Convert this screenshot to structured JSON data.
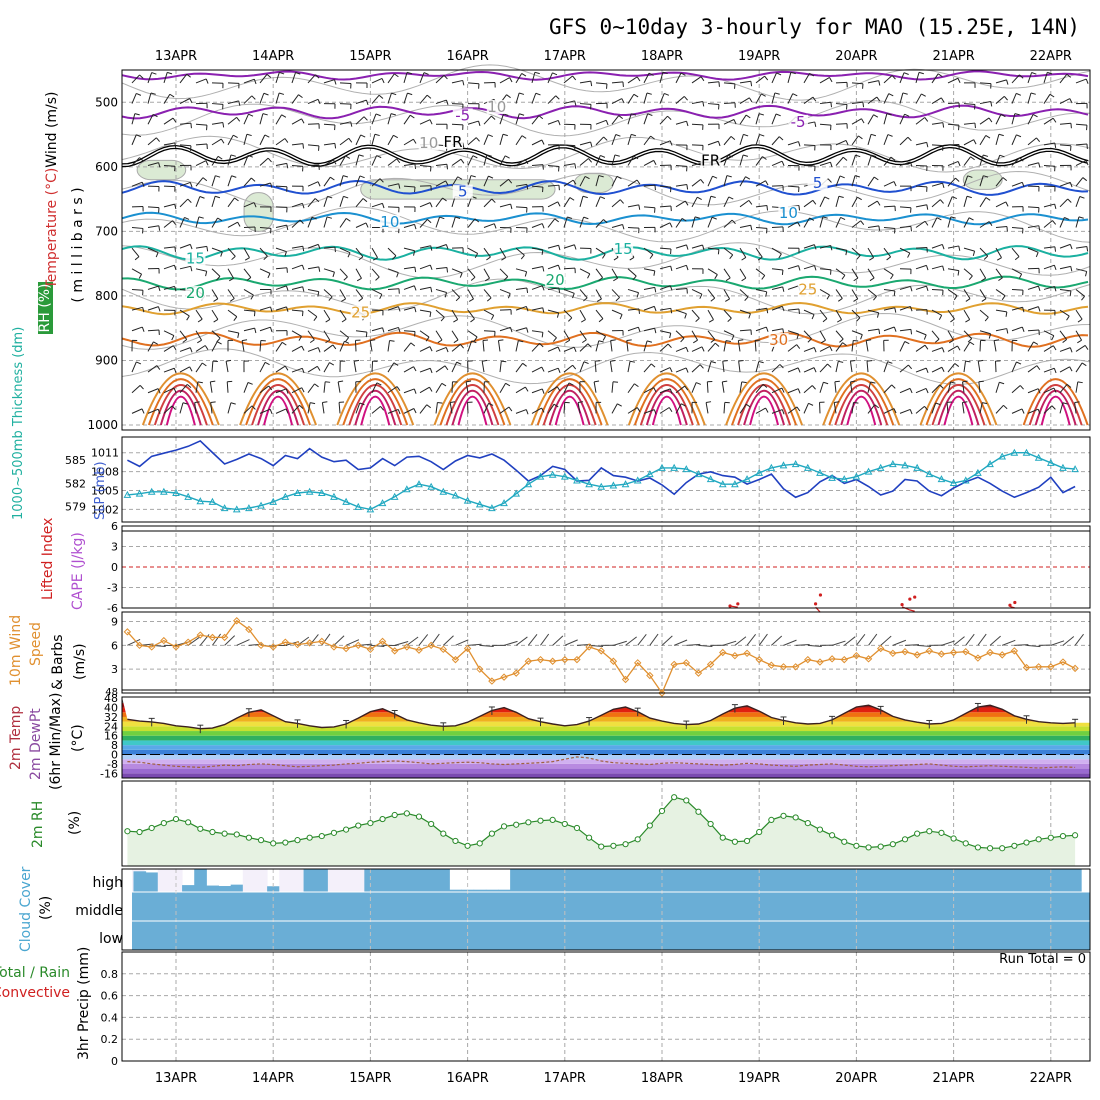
{
  "title": "GFS 0~10day 3-hourly for MAO (15.25E, 14N)",
  "dates": [
    "13APR",
    "14APR",
    "15APR",
    "16APR",
    "17APR",
    "18APR",
    "19APR",
    "20APR",
    "21APR",
    "22APR"
  ],
  "colors": {
    "wind": "#000000",
    "temperature": "#d03030",
    "rh": "#2a8a2a",
    "thickness": "#2040c0",
    "slp": "#20a8c0",
    "li": "#d02020",
    "cape": "#b050d0",
    "wind10": "#e09030",
    "t2m": "#8b0000",
    "dew": "#7a4a9a",
    "rh2m": "#2a8a2a",
    "cloud": "#6aaed6",
    "precip_total": "#2a8a2a",
    "precip_conv": "#d02020"
  },
  "labels": {
    "upper": {
      "wind": "Wind (m/s)",
      "temp": "Temperature (°C)",
      "rh": "RH (%)",
      "units": "( m i l l i b a r s )"
    },
    "thick": {
      "thickness": "1000~500mb Thickness (dm)",
      "slp": "SLP (mb)"
    },
    "li": {
      "li": "Lifted Index",
      "cape": "CAPE (J/kg)"
    },
    "wind10": {
      "l1": "10m Wind",
      "l2": "Speed",
      "l3": "& Barbs",
      "units": "(m/s)"
    },
    "t2m": {
      "l1": "2m Temp",
      "l2": "2m DewPt",
      "l3": "(6hr Min/Max)",
      "units": "(°C)"
    },
    "rh2m": {
      "l1": "2m RH",
      "units": "(%)"
    },
    "cloud": {
      "l1": "Cloud Cover",
      "units": "(%)",
      "high": "high",
      "middle": "middle",
      "low": "low"
    },
    "precip": {
      "l1": "Total / Rain",
      "l2": "Convective",
      "units": "3hr Precip (mm)",
      "run_total": "Run Total = 0"
    }
  },
  "upper_air": {
    "pressure_ticks": [
      500,
      600,
      700,
      800,
      900,
      1000
    ],
    "contour_labels": [
      {
        "text": "-5",
        "day": 2.95,
        "p": 525,
        "color": "#8a20b0"
      },
      {
        "text": "-5",
        "day": 6.4,
        "p": 535,
        "color": "#8a20b0"
      },
      {
        "text": "FR",
        "day": 2.85,
        "p": 566,
        "color": "#000000"
      },
      {
        "text": "FR",
        "day": 5.5,
        "p": 595,
        "color": "#000000"
      },
      {
        "text": "5",
        "day": 2.95,
        "p": 643,
        "color": "#2050d0"
      },
      {
        "text": "5",
        "day": 6.6,
        "p": 630,
        "color": "#2050d0"
      },
      {
        "text": "10",
        "day": 2.2,
        "p": 690,
        "color": "#1a90d0"
      },
      {
        "text": "10",
        "day": 6.3,
        "p": 676,
        "color": "#1a90d0"
      },
      {
        "text": "15",
        "day": 0.2,
        "p": 747,
        "color": "#1ab0a0"
      },
      {
        "text": "15",
        "day": 4.6,
        "p": 732,
        "color": "#1ab0a0"
      },
      {
        "text": "20",
        "day": 0.2,
        "p": 800,
        "color": "#1aa870"
      },
      {
        "text": "20",
        "day": 3.9,
        "p": 780,
        "color": "#1aa870"
      },
      {
        "text": "25",
        "day": 1.9,
        "p": 830,
        "color": "#e0a030"
      },
      {
        "text": "25",
        "day": 6.5,
        "p": 795,
        "color": "#e0a030"
      },
      {
        "text": "30",
        "day": 6.2,
        "p": 873,
        "color": "#e07020"
      },
      {
        "text": "10",
        "day": 2.6,
        "p": 568,
        "color": "#999999"
      },
      {
        "text": "10",
        "day": 3.3,
        "p": 512,
        "color": "#999999"
      }
    ],
    "isotherms": [
      {
        "name": "-10",
        "color": "#8a20b0",
        "base": 458,
        "amp": 4
      },
      {
        "name": "-5",
        "color": "#8a20b0",
        "base": 515,
        "amp": 7
      },
      {
        "name": "FR",
        "color": "#000000",
        "base": 583,
        "amp": 12
      },
      {
        "name": "5",
        "color": "#2050d0",
        "base": 633,
        "amp": 8
      },
      {
        "name": "10",
        "color": "#1a90d0",
        "base": 680,
        "amp": 6
      },
      {
        "name": "15",
        "color": "#1ab0a0",
        "base": 733,
        "amp": 8
      },
      {
        "name": "20",
        "color": "#1aa870",
        "base": 780,
        "amp": 7
      },
      {
        "name": "25",
        "color": "#e0a030",
        "base": 820,
        "amp": 6
      },
      {
        "name": "30",
        "color": "#e07020",
        "base": 868,
        "amp": 8
      }
    ],
    "moist_regions": [
      {
        "day0": -0.4,
        "day1": 0.1,
        "p0": 590,
        "p1": 620
      },
      {
        "day0": 0.7,
        "day1": 1.0,
        "p0": 640,
        "p1": 700
      },
      {
        "day0": 1.9,
        "day1": 3.9,
        "p0": 620,
        "p1": 650
      },
      {
        "day0": 4.1,
        "day1": 4.5,
        "p0": 610,
        "p1": 640
      },
      {
        "day0": 8.1,
        "day1": 8.5,
        "p0": 605,
        "p1": 635
      }
    ]
  },
  "chart_data": [
    {
      "type": "line",
      "title": "",
      "panel": "thickness_slp",
      "x_unit": "day offset from 13APR 00Z",
      "x": [
        -0.5,
        -0.375,
        -0.25,
        -0.125,
        0,
        0.125,
        0.25,
        0.375,
        0.5,
        0.625,
        0.75,
        0.875,
        1,
        1.125,
        1.25,
        1.375,
        1.5,
        1.625,
        1.75,
        1.875,
        2,
        2.125,
        2.25,
        2.375,
        2.5,
        2.625,
        2.75,
        2.875,
        3,
        3.125,
        3.25,
        3.375,
        3.5,
        3.625,
        3.75,
        3.875,
        4,
        4.125,
        4.25,
        4.375,
        4.5,
        4.625,
        4.75,
        4.875,
        5,
        5.125,
        5.25,
        5.375,
        5.5,
        5.625,
        5.75,
        5.875,
        6,
        6.125,
        6.25,
        6.375,
        6.5,
        6.625,
        6.75,
        6.875,
        7,
        7.125,
        7.25,
        7.375,
        7.5,
        7.625,
        7.75,
        7.875,
        8,
        8.125,
        8.25,
        8.375,
        8.5,
        8.625,
        8.75,
        8.875,
        9,
        9.125,
        9.25
      ],
      "series": [
        {
          "axis": "thickness_dm",
          "ylim": [
            577,
            588
          ],
          "values": [
            585.0,
            584.2,
            585.5,
            585.9,
            586.3,
            586.8,
            587.5,
            586.0,
            584.5,
            585.1,
            585.8,
            585.2,
            584.3,
            585.6,
            585.2,
            586.5,
            585.4,
            584.8,
            585.0,
            583.8,
            584.0,
            585.2,
            584.3,
            585.4,
            585.5,
            584.8,
            583.8,
            584.9,
            585.6,
            585.3,
            585.8,
            585.0,
            583.7,
            582.3,
            583.0,
            584.2,
            583.8,
            582.3,
            582.4,
            584.0,
            583.0,
            582.8,
            582.3,
            582.7,
            581.8,
            580.6,
            582.1,
            583.2,
            583.5,
            583.0,
            582.8,
            581.9,
            582.5,
            583.2,
            581.3,
            580.2,
            580.8,
            582.2,
            583.0,
            582.0,
            582.5,
            581.6,
            580.5,
            581.0,
            582.5,
            582.3,
            581.0,
            580.4,
            581.4,
            582.2,
            582.8,
            582.0,
            581.0,
            580.2,
            580.8,
            581.5,
            582.8,
            580.8,
            581.6
          ]
        },
        {
          "axis": "slp_mb",
          "ylim": [
            1000,
            1013.5
          ],
          "values": [
            1004.3,
            1004.5,
            1004.8,
            1004.8,
            1004.6,
            1004.0,
            1003.3,
            1003.2,
            1002.2,
            1002.0,
            1002.2,
            1002.6,
            1003.2,
            1004.0,
            1004.6,
            1004.8,
            1004.6,
            1004.0,
            1003.2,
            1002.4,
            1002.0,
            1003.0,
            1004.0,
            1005.2,
            1006.0,
            1005.6,
            1004.8,
            1004.2,
            1003.4,
            1002.8,
            1002.2,
            1003.0,
            1004.5,
            1006.0,
            1007.2,
            1007.5,
            1007.2,
            1006.6,
            1006.0,
            1005.6,
            1005.8,
            1006.0,
            1006.6,
            1007.6,
            1008.6,
            1008.6,
            1008.4,
            1007.6,
            1006.8,
            1006.0,
            1006.0,
            1006.8,
            1007.8,
            1008.6,
            1009.0,
            1009.2,
            1008.6,
            1007.8,
            1007.0,
            1006.8,
            1007.2,
            1008.0,
            1008.6,
            1009.2,
            1009.0,
            1008.6,
            1007.6,
            1006.8,
            1006.2,
            1006.6,
            1007.8,
            1009.2,
            1010.4,
            1011.0,
            1011.0,
            1010.2,
            1009.4,
            1008.6,
            1008.4
          ]
        }
      ],
      "thickness_ticks": [
        579,
        582,
        585
      ],
      "slp_ticks": [
        1002,
        1005,
        1008,
        1011
      ]
    },
    {
      "type": "line",
      "title": "",
      "panel": "lifted_index_cape",
      "ylim": [
        -6,
        6
      ],
      "ticks": [
        -6,
        -3,
        0,
        3,
        6
      ],
      "tick_labels": [
        "6",
        "3",
        "0",
        "-3",
        "-6"
      ],
      "zero_line": 0,
      "series": [
        {
          "name": "",
          "x": [
            5.7,
            5.78,
            6.58,
            6.63,
            7.47,
            7.55,
            7.6,
            8.58,
            8.63
          ],
          "values": [
            -5.8,
            -5.5,
            -5.5,
            -4.2,
            -5.6,
            -4.8,
            -4.5,
            -5.7,
            -5.3
          ]
        }
      ]
    },
    {
      "type": "line",
      "title": "",
      "panel": "wind10m",
      "ylim": [
        0,
        10.2
      ],
      "ticks": [
        3,
        6,
        9
      ],
      "x_unit": "day offset from 13APR 00Z",
      "x": [
        -0.5,
        -0.375,
        -0.25,
        -0.125,
        0,
        0.125,
        0.25,
        0.375,
        0.5,
        0.625,
        0.75,
        0.875,
        1,
        1.125,
        1.25,
        1.375,
        1.5,
        1.625,
        1.75,
        1.875,
        2,
        2.125,
        2.25,
        2.375,
        2.5,
        2.625,
        2.75,
        2.875,
        3,
        3.125,
        3.25,
        3.375,
        3.5,
        3.625,
        3.75,
        3.875,
        4,
        4.125,
        4.25,
        4.375,
        4.5,
        4.625,
        4.75,
        4.875,
        5,
        5.125,
        5.25,
        5.375,
        5.5,
        5.625,
        5.75,
        5.875,
        6,
        6.125,
        6.25,
        6.375,
        6.5,
        6.625,
        6.75,
        6.875,
        7,
        7.125,
        7.25,
        7.375,
        7.5,
        7.625,
        7.75,
        7.875,
        8,
        8.125,
        8.25,
        8.375,
        8.5,
        8.625,
        8.75,
        8.875,
        9,
        9.125,
        9.25
      ],
      "series": [
        {
          "name": "",
          "values": [
            7.7,
            6.0,
            5.8,
            6.6,
            5.8,
            6.4,
            7.3,
            7.0,
            7.0,
            9.1,
            8.0,
            6.0,
            5.8,
            6.4,
            6.1,
            6.3,
            6.5,
            5.8,
            5.6,
            6.0,
            5.5,
            6.5,
            5.3,
            5.8,
            5.4,
            6.0,
            5.5,
            4.2,
            5.6,
            3.0,
            1.5,
            2.0,
            2.5,
            4.0,
            4.2,
            4.0,
            4.2,
            4.2,
            5.8,
            5.3,
            4.0,
            1.7,
            3.8,
            2.2,
            0.0,
            3.6,
            3.8,
            2.5,
            3.6,
            5.1,
            4.7,
            5.0,
            4.2,
            3.5,
            3.3,
            3.3,
            4.2,
            3.9,
            4.3,
            4.2,
            4.7,
            4.3,
            5.6,
            5.0,
            5.2,
            4.8,
            5.3,
            4.9,
            5.1,
            5.2,
            4.4,
            5.1,
            4.8,
            5.3,
            3.2,
            3.3,
            3.3,
            3.9,
            3.1
          ]
        }
      ]
    },
    {
      "type": "area",
      "title": "",
      "panel": "t2m_dewpt",
      "ylim": [
        -20,
        49
      ],
      "ticks": [
        -16,
        -8,
        0,
        8,
        16,
        24,
        32,
        40,
        48
      ],
      "series": [
        {
          "name": "",
          "values": [
            30.0,
            28.5,
            27.8,
            26.5,
            24.5,
            23.5,
            22.0,
            22.5,
            25.5,
            31.0,
            36.0,
            38.0,
            33.0,
            28.0,
            26.5,
            24.5,
            23.0,
            23.5,
            26.0,
            31.0,
            36.5,
            39.0,
            34.5,
            29.5,
            27.0,
            25.0,
            24.0,
            24.5,
            27.5,
            32.5,
            37.5,
            40.0,
            36.0,
            30.5,
            28.0,
            26.0,
            24.5,
            25.5,
            28.5,
            33.5,
            38.5,
            40.5,
            36.5,
            31.0,
            28.5,
            26.5,
            25.5,
            26.0,
            29.0,
            34.5,
            39.5,
            41.5,
            37.0,
            31.5,
            29.0,
            27.0,
            26.0,
            26.5,
            29.5,
            35.0,
            40.5,
            42.0,
            38.0,
            32.5,
            29.5,
            27.5,
            26.0,
            26.5,
            29.5,
            35.0,
            40.5,
            42.0,
            38.5,
            33.0,
            30.0,
            28.0,
            27.0,
            26.5,
            27.0
          ]
        },
        {
          "name": "",
          "values": [
            -6.0,
            -6.5,
            -8.0,
            -9.0,
            -10.0,
            -10.5,
            -11.0,
            -10.0,
            -9.0,
            -9.5,
            -8.5,
            -8.0,
            -8.5,
            -9.5,
            -10.5,
            -10.0,
            -9.5,
            -9.0,
            -8.0,
            -7.5,
            -6.5,
            -6.0,
            -5.5,
            -6.0,
            -7.0,
            -8.0,
            -7.5,
            -7.0,
            -6.5,
            -7.0,
            -8.0,
            -8.5,
            -8.0,
            -7.5,
            -7.0,
            -6.0,
            -4.0,
            -2.0,
            -3.0,
            -5.5,
            -7.0,
            -7.5,
            -8.0,
            -8.5,
            -7.5,
            -7.0,
            -7.5,
            -8.0,
            -8.5,
            -9.0,
            -8.5,
            -7.5,
            -8.0,
            -9.0,
            -9.5,
            -10.0,
            -9.0,
            -8.5,
            -8.0,
            -9.0,
            -10.0,
            -10.5,
            -10.0,
            -9.5,
            -9.0,
            -8.5,
            -8.0,
            -9.0,
            -10.0,
            -10.5,
            -10.0,
            -9.5,
            -10.0,
            -10.5,
            -11.0,
            -11.5,
            -11.0,
            -10.5,
            -11.0
          ]
        }
      ]
    },
    {
      "type": "area",
      "title": "",
      "panel": "rh2m",
      "ylim": [
        0,
        100
      ],
      "series": [
        {
          "name": "",
          "values": [
            38,
            37,
            42,
            48,
            53,
            49,
            41,
            37,
            35,
            34,
            30,
            27,
            23,
            24,
            27,
            30,
            32,
            36,
            40,
            45,
            48,
            53,
            58,
            60,
            56,
            47,
            35,
            26,
            20,
            23,
            35,
            44,
            46,
            49,
            51,
            52,
            47,
            42,
            30,
            19,
            20,
            22,
            28,
            45,
            63,
            80,
            76,
            62,
            47,
            30,
            25,
            26,
            37,
            52,
            57,
            55,
            48,
            40,
            33,
            25,
            20,
            18,
            19,
            22,
            28,
            35,
            38,
            36,
            29,
            23,
            18,
            17,
            17,
            20,
            24,
            28,
            30,
            32,
            33
          ]
        }
      ]
    },
    {
      "type": "bar",
      "title": "",
      "panel": "cloud_high",
      "ylim": [
        0,
        100
      ],
      "series": [
        {
          "name": "",
          "values": [
            0,
            90,
            85,
            0,
            0,
            30,
            100,
            28,
            26,
            32,
            0,
            0,
            25,
            0,
            0,
            100,
            100,
            0,
            0,
            0,
            100,
            100,
            100,
            100,
            100,
            100,
            100,
            10,
            10,
            10,
            10,
            10,
            100,
            100,
            100,
            100,
            100,
            100,
            100,
            100,
            100,
            100,
            100,
            100,
            100,
            100,
            100,
            100,
            100,
            100,
            100,
            100,
            100,
            100,
            100,
            100,
            100,
            100,
            100,
            100,
            100,
            100,
            100,
            100,
            100,
            100,
            100,
            100,
            100,
            100,
            100,
            100,
            100,
            100,
            100,
            100,
            100,
            100,
            100
          ]
        }
      ]
    },
    {
      "type": "bar",
      "title": "",
      "panel": "precip",
      "ylim": [
        0,
        1.0
      ],
      "ticks": [
        0,
        0.2,
        0.4,
        0.6,
        0.8
      ],
      "series": [
        {
          "name": "",
          "values": []
        }
      ]
    }
  ]
}
